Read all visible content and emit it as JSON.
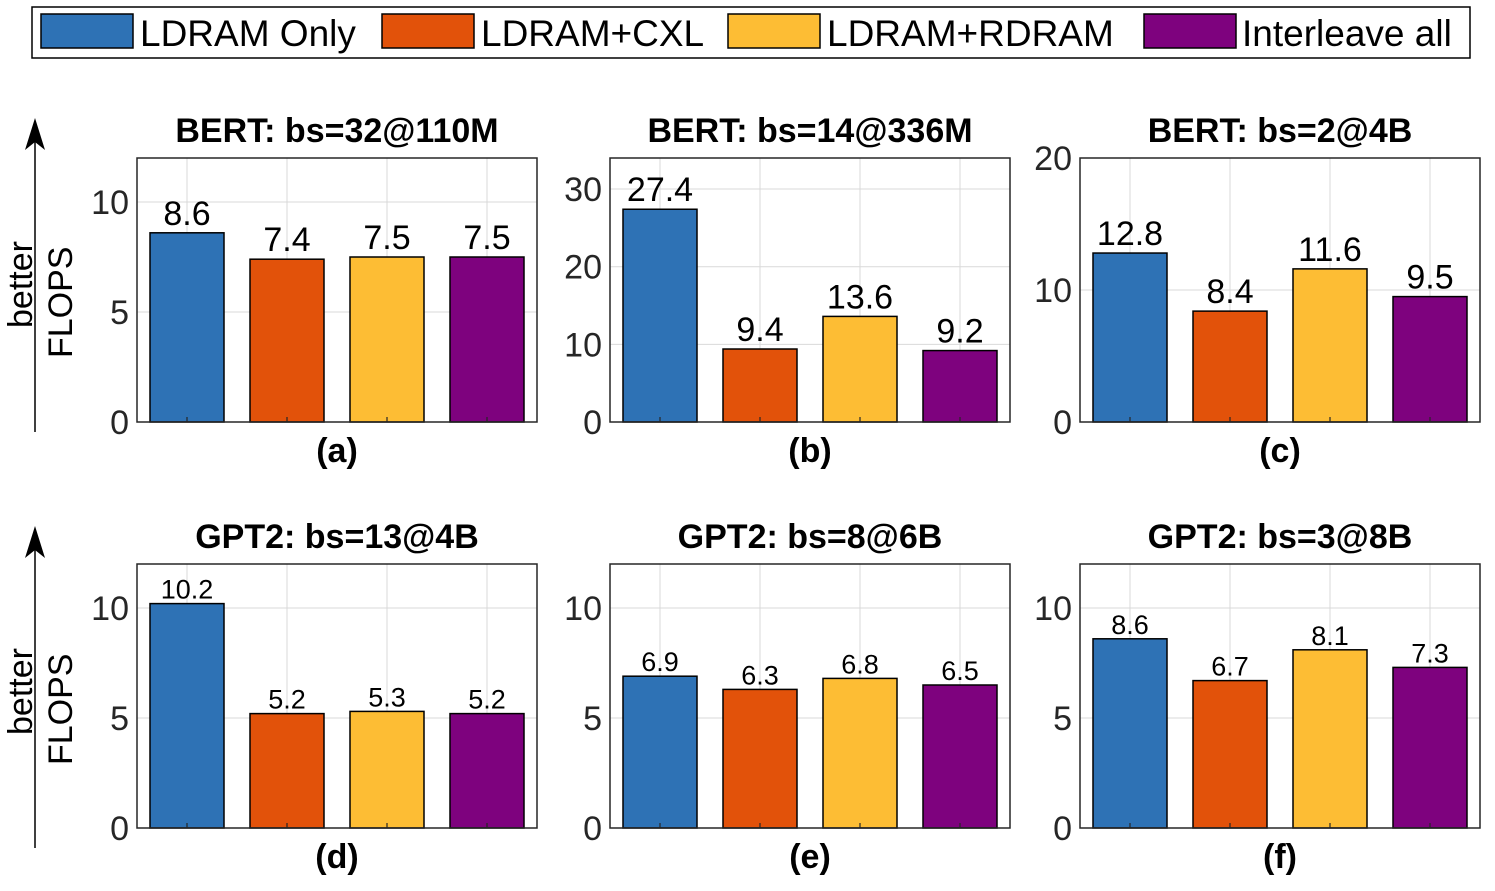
{
  "colors": {
    "ldram_only": "#2E72B5",
    "ldram_cxl": "#E2520A",
    "ldram_rdram": "#FDBD34",
    "interleave_all": "#7E027E"
  },
  "legend": [
    "LDRAM Only",
    "LDRAM+CXL",
    "LDRAM+RDRAM",
    "Interleave all"
  ],
  "y_axis": {
    "label": "FLOPS",
    "direction_label": "better"
  },
  "chart_data": [
    {
      "type": "bar",
      "id": "a",
      "title": "BERT: bs=32@110M",
      "sublabel": "(a)",
      "categories": [
        "LDRAM Only",
        "LDRAM+CXL",
        "LDRAM+RDRAM",
        "Interleave all"
      ],
      "values": [
        8.6,
        7.4,
        7.5,
        7.5
      ],
      "value_labels": [
        "8.6",
        "7.4",
        "7.5",
        "7.5"
      ],
      "ylim": [
        0,
        12
      ],
      "yticks": [
        0,
        5,
        10
      ],
      "ytick_labels": [
        "0",
        "5",
        "10"
      ],
      "grid": true
    },
    {
      "type": "bar",
      "id": "b",
      "title": "BERT: bs=14@336M",
      "sublabel": "(b)",
      "categories": [
        "LDRAM Only",
        "LDRAM+CXL",
        "LDRAM+RDRAM",
        "Interleave all"
      ],
      "values": [
        27.4,
        9.4,
        13.6,
        9.2
      ],
      "value_labels": [
        "27.4",
        "9.4",
        "13.6",
        "9.2"
      ],
      "ylim": [
        0,
        34
      ],
      "yticks": [
        0,
        10,
        20,
        30
      ],
      "ytick_labels": [
        "0",
        "10",
        "20",
        "30"
      ],
      "grid": true
    },
    {
      "type": "bar",
      "id": "c",
      "title": "BERT: bs=2@4B",
      "sublabel": "(c)",
      "categories": [
        "LDRAM Only",
        "LDRAM+CXL",
        "LDRAM+RDRAM",
        "Interleave all"
      ],
      "values": [
        12.8,
        8.4,
        11.6,
        9.5
      ],
      "value_labels": [
        "12.8",
        "8.4",
        "11.6",
        "9.5"
      ],
      "ylim": [
        0,
        20
      ],
      "yticks": [
        0,
        10,
        20
      ],
      "ytick_labels": [
        "0",
        "10",
        "20"
      ],
      "grid": true
    },
    {
      "type": "bar",
      "id": "d",
      "title": "GPT2: bs=13@4B",
      "sublabel": "(d)",
      "categories": [
        "LDRAM Only",
        "LDRAM+CXL",
        "LDRAM+RDRAM",
        "Interleave all"
      ],
      "values": [
        10.2,
        5.2,
        5.3,
        5.2
      ],
      "value_labels": [
        "10.2",
        "5.2",
        "5.3",
        "5.2"
      ],
      "ylim": [
        0,
        12
      ],
      "yticks": [
        0,
        5,
        10
      ],
      "ytick_labels": [
        "0",
        "5",
        "10"
      ],
      "grid": true
    },
    {
      "type": "bar",
      "id": "e",
      "title": "GPT2: bs=8@6B",
      "sublabel": "(e)",
      "categories": [
        "LDRAM Only",
        "LDRAM+CXL",
        "LDRAM+RDRAM",
        "Interleave all"
      ],
      "values": [
        6.9,
        6.3,
        6.8,
        6.5
      ],
      "value_labels": [
        "6.9",
        "6.3",
        "6.8",
        "6.5"
      ],
      "ylim": [
        0,
        12
      ],
      "yticks": [
        0,
        5,
        10
      ],
      "ytick_labels": [
        "0",
        "5",
        "10"
      ],
      "grid": true
    },
    {
      "type": "bar",
      "id": "f",
      "title": "GPT2: bs=3@8B",
      "sublabel": "(f)",
      "categories": [
        "LDRAM Only",
        "LDRAM+CXL",
        "LDRAM+RDRAM",
        "Interleave all"
      ],
      "values": [
        8.6,
        6.7,
        8.1,
        7.3
      ],
      "value_labels": [
        "8.6",
        "6.7",
        "8.1",
        "7.3"
      ],
      "ylim": [
        0,
        12
      ],
      "yticks": [
        0,
        5,
        10
      ],
      "ytick_labels": [
        "0",
        "5",
        "10"
      ],
      "grid": true
    }
  ]
}
